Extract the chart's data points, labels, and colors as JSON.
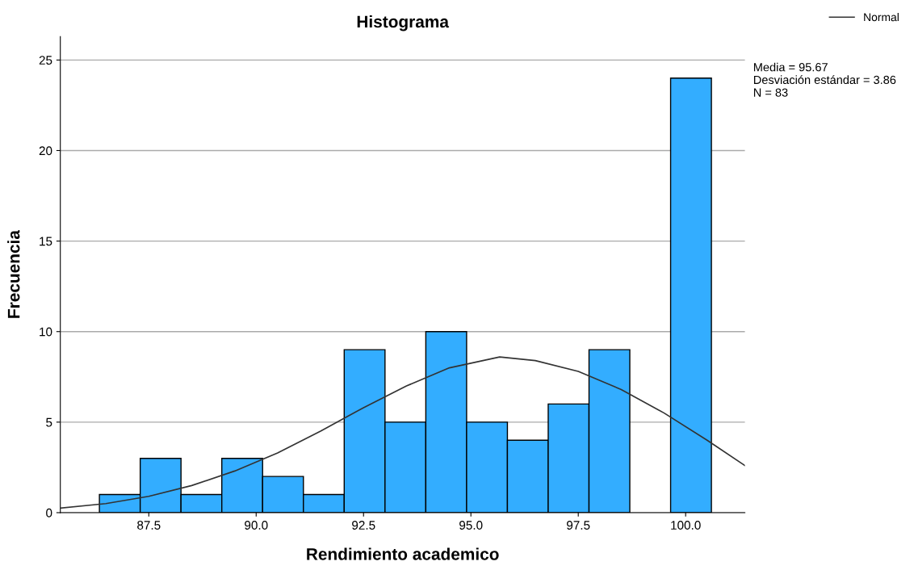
{
  "chart_data": {
    "type": "histogram",
    "title": "Histograma",
    "xlabel": "Rendimiento academico",
    "ylabel": "Frecuencia",
    "bins": [
      86.35,
      87.3,
      88.25,
      89.2,
      90.15,
      91.1,
      92.05,
      93.0,
      93.95,
      94.9,
      95.85,
      96.8,
      97.75,
      98.7,
      99.65,
      100.6
    ],
    "values": [
      1,
      3,
      1,
      3,
      2,
      1,
      9,
      5,
      10,
      5,
      4,
      6,
      9,
      0,
      24
    ],
    "color": "#33adff",
    "series": [
      {
        "name": "Normal",
        "type": "line",
        "color": "#333333",
        "x": [
          85.44,
          86.5,
          87.5,
          88.5,
          89.5,
          90.5,
          91.5,
          92.5,
          93.5,
          94.5,
          95.67,
          96.5,
          97.5,
          98.5,
          99.5,
          100.5,
          101.38
        ],
        "values": [
          0.25,
          0.5,
          0.9,
          1.5,
          2.3,
          3.3,
          4.5,
          5.8,
          7.0,
          8.0,
          8.6,
          8.4,
          7.8,
          6.8,
          5.5,
          4.0,
          2.6
        ]
      }
    ],
    "xlim": [
      85.44,
      101.38
    ],
    "ylim": [
      0,
      26.3
    ],
    "xticks": [
      87.5,
      {
        "value": 90,
        "label": "90.0"
      },
      92.5,
      {
        "value": 95,
        "label": "95.0"
      },
      97.5,
      {
        "value": 100,
        "label": "100.0"
      }
    ],
    "yticks": [
      0,
      5,
      10,
      15,
      20,
      25
    ],
    "grid": "y",
    "legend": "top right",
    "annotations": [
      "Media = 95.67\nDesviación estándar = 3.86\nN = 83"
    ]
  }
}
